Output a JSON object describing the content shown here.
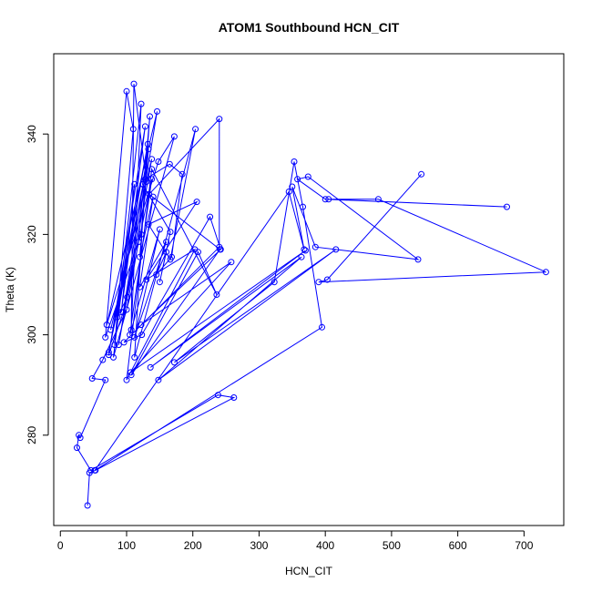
{
  "chart_data": {
    "type": "line",
    "title": "ATOM1 Southbound HCN_CIT",
    "xlabel": "HCN_CIT",
    "ylabel": "Theta (K)",
    "xlim": [
      -10,
      760
    ],
    "ylim": [
      262,
      356
    ],
    "xticks": [
      0,
      100,
      200,
      300,
      400,
      500,
      600,
      700
    ],
    "yticks": [
      280,
      300,
      320,
      340
    ],
    "grid": false,
    "markers": "open-circle",
    "color": "#0000ff",
    "series": [
      {
        "name": "",
        "points": [
          [
            41,
            266
          ],
          [
            44,
            272.5
          ],
          [
            53,
            273
          ],
          [
            262,
            287.5
          ],
          [
            238,
            288
          ],
          [
            46,
            273
          ],
          [
            25,
            277.5
          ],
          [
            28,
            280
          ],
          [
            30,
            279.5
          ],
          [
            68,
            291
          ],
          [
            48,
            291.3
          ],
          [
            64,
            295
          ],
          [
            100,
            305
          ],
          [
            118,
            318.5
          ],
          [
            135,
            343.5
          ],
          [
            122,
            320
          ],
          [
            68,
            299.5
          ],
          [
            100,
            348.5
          ],
          [
            110,
            341
          ],
          [
            82,
            298
          ],
          [
            122,
            346
          ],
          [
            107,
            301
          ],
          [
            111,
            350
          ],
          [
            130,
            330.5
          ],
          [
            76,
            301
          ],
          [
            138,
            335
          ],
          [
            88,
            298
          ],
          [
            146,
            344.5
          ],
          [
            70,
            302
          ],
          [
            148,
            334.5
          ],
          [
            172,
            339.5
          ],
          [
            80,
            295.5
          ],
          [
            112,
            330
          ],
          [
            92,
            304.5
          ],
          [
            128,
            341.5
          ],
          [
            73,
            296
          ],
          [
            95,
            304.5
          ],
          [
            125,
            330
          ],
          [
            73,
            296.5
          ],
          [
            132,
            338
          ],
          [
            86,
            303.5
          ],
          [
            101,
            307.5
          ],
          [
            138,
            331
          ],
          [
            105,
            300
          ],
          [
            150,
            321
          ],
          [
            112,
            299.5
          ],
          [
            160,
            318.5
          ],
          [
            120,
            309.5
          ],
          [
            140,
            327.5
          ],
          [
            120,
            315.5
          ],
          [
            133,
            337
          ],
          [
            124,
            330
          ],
          [
            166,
            320.5
          ],
          [
            150,
            310.5
          ],
          [
            160,
            316.5
          ],
          [
            145,
            312
          ],
          [
            168,
            315.5
          ],
          [
            184,
            332
          ],
          [
            165,
            334
          ],
          [
            128,
            331
          ],
          [
            112,
            295.5
          ],
          [
            204,
            341
          ],
          [
            166,
            315
          ],
          [
            133,
            322
          ],
          [
            206,
            326.5
          ],
          [
            130,
            311
          ],
          [
            203,
            317
          ],
          [
            100,
            291
          ],
          [
            138,
            333
          ],
          [
            236,
            308
          ],
          [
            208,
            316.5
          ],
          [
            107,
            292
          ],
          [
            241,
            317
          ],
          [
            134,
            328
          ],
          [
            240,
            343
          ],
          [
            240,
            317.5
          ],
          [
            96,
            298.5
          ],
          [
            123,
            300
          ],
          [
            226,
            323.5
          ],
          [
            242,
            317
          ],
          [
            122,
            302
          ],
          [
            258,
            314.5
          ],
          [
            106,
            292.5
          ],
          [
            370,
            316.8
          ],
          [
            136,
            293.5
          ],
          [
            364,
            315.5
          ],
          [
            148,
            291
          ],
          [
            416,
            317
          ],
          [
            172,
            294.5
          ],
          [
            323,
            310.5
          ],
          [
            353,
            334.5
          ],
          [
            366,
            325.5
          ],
          [
            395,
            301.5
          ],
          [
            52,
            273
          ],
          [
            345,
            328.5
          ],
          [
            368,
            317
          ],
          [
            350,
            329.5
          ],
          [
            385,
            317.5
          ],
          [
            540,
            315
          ],
          [
            374,
            331.5
          ],
          [
            358,
            331
          ],
          [
            400,
            327
          ],
          [
            674,
            325.5
          ],
          [
            405,
            327
          ],
          [
            480,
            327
          ],
          [
            733,
            312.5
          ],
          [
            390,
            310.5
          ],
          [
            403,
            311
          ],
          [
            545,
            332
          ]
        ]
      }
    ]
  }
}
